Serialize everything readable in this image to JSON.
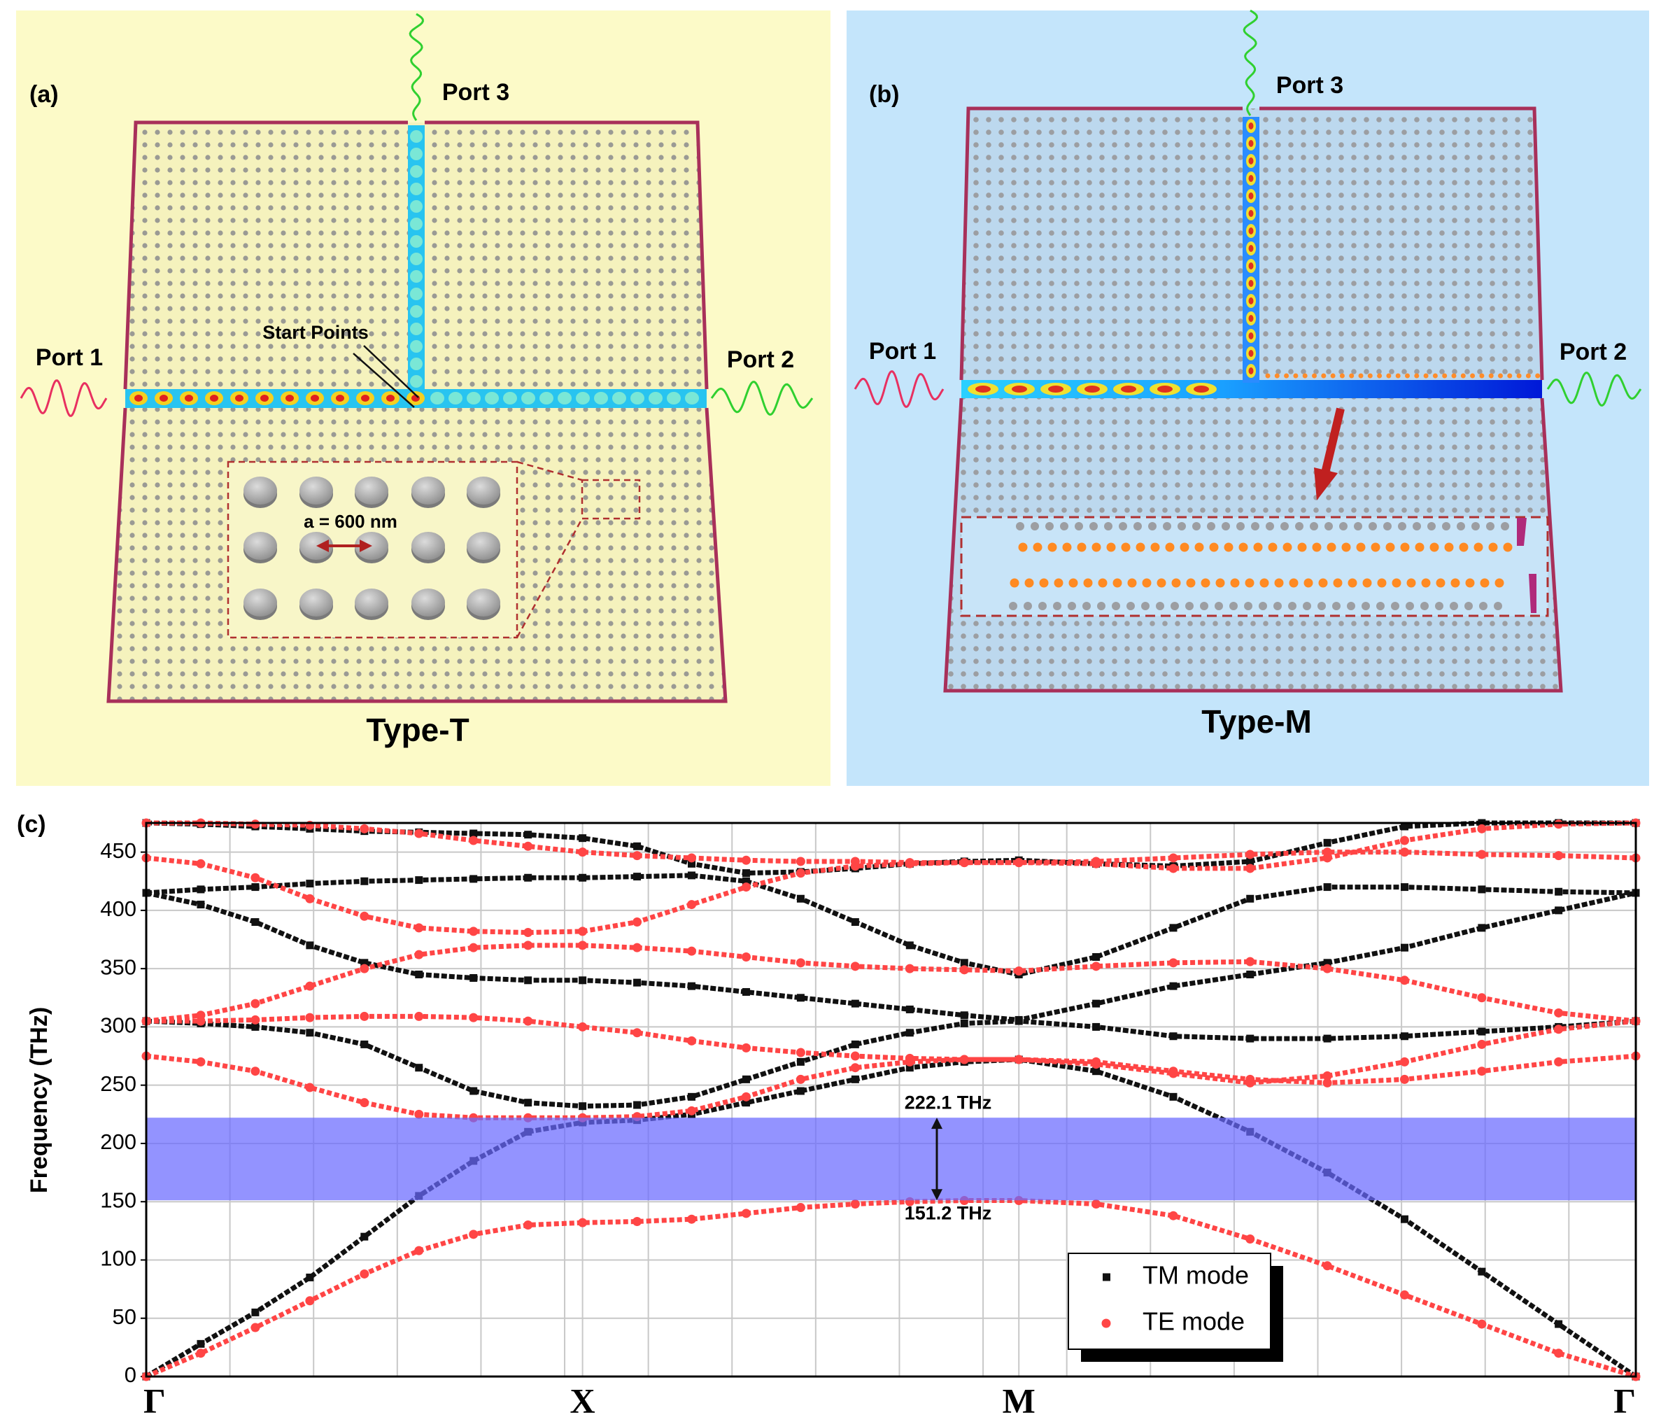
{
  "panels": {
    "a": {
      "label": "(a)",
      "port1": "Port 1",
      "port2": "Port 2",
      "port3": "Port 3",
      "start_label": "Start Points",
      "lattice_label": "a = 600 nm",
      "caption": "Type-T"
    },
    "b": {
      "label": "(b)",
      "port1": "Port 1",
      "port2": "Port 2",
      "port3": "Port 3",
      "caption": "Type-M"
    }
  },
  "chart_data": {
    "type": "scatter",
    "label": "(c)",
    "y_label": "Frequency (THz)",
    "x": [
      0,
      0.125,
      0.25,
      0.375,
      0.5,
      0.625,
      0.75,
      0.875,
      1,
      1.125,
      1.25,
      1.375,
      1.5,
      1.625,
      1.75,
      1.875,
      2,
      2.177,
      2.354,
      2.53,
      2.707,
      2.884,
      3.061,
      3.237,
      3.414
    ],
    "xlim": [
      0,
      3.414
    ],
    "xticks": [
      {
        "value": 0,
        "label": "Γ"
      },
      {
        "value": 1,
        "label": "X"
      },
      {
        "value": 2,
        "label": "M"
      },
      {
        "value": 3.414,
        "label": "Γ"
      }
    ],
    "ylim": [
      0,
      475
    ],
    "yticks": [
      0,
      50,
      100,
      150,
      200,
      250,
      300,
      350,
      400,
      450
    ],
    "grid": true,
    "series": [
      {
        "name": "TM mode",
        "color": "#111111",
        "marker": "square",
        "bands": [
          [
            0,
            28,
            55,
            85,
            120,
            155,
            185,
            210,
            218,
            220,
            225,
            235,
            245,
            255,
            265,
            270,
            272,
            262,
            240,
            210,
            175,
            135,
            90,
            45,
            0
          ],
          [
            305,
            303,
            300,
            295,
            285,
            265,
            245,
            235,
            232,
            233,
            240,
            255,
            270,
            285,
            295,
            303,
            305,
            300,
            292,
            290,
            290,
            292,
            296,
            300,
            305
          ],
          [
            415,
            405,
            390,
            370,
            355,
            345,
            342,
            340,
            340,
            338,
            335,
            330,
            325,
            320,
            315,
            310,
            306,
            320,
            335,
            345,
            355,
            368,
            385,
            400,
            415
          ],
          [
            415,
            418,
            420,
            423,
            425,
            426,
            427,
            428,
            428,
            429,
            430,
            425,
            410,
            390,
            370,
            355,
            345,
            360,
            385,
            410,
            420,
            420,
            418,
            416,
            415
          ],
          [
            475,
            474,
            472,
            470,
            468,
            467,
            466,
            465,
            462,
            455,
            440,
            432,
            433,
            436,
            440,
            442,
            443,
            440,
            438,
            442,
            458,
            472,
            475,
            475,
            475
          ]
        ]
      },
      {
        "name": "TE mode",
        "color": "#ff4545",
        "marker": "circle",
        "bands": [
          [
            0,
            20,
            42,
            65,
            88,
            108,
            122,
            130,
            132,
            133,
            135,
            140,
            145,
            148,
            150,
            151,
            151,
            148,
            138,
            118,
            95,
            70,
            45,
            20,
            0
          ],
          [
            275,
            270,
            262,
            248,
            235,
            225,
            222,
            222,
            222,
            223,
            228,
            240,
            255,
            265,
            270,
            272,
            272,
            270,
            262,
            255,
            252,
            255,
            262,
            270,
            275
          ],
          [
            305,
            305,
            306,
            308,
            309,
            309,
            308,
            305,
            300,
            295,
            288,
            282,
            278,
            275,
            273,
            272,
            272,
            268,
            260,
            252,
            258,
            270,
            285,
            298,
            305
          ],
          [
            305,
            310,
            320,
            335,
            350,
            362,
            368,
            370,
            370,
            368,
            365,
            360,
            355,
            352,
            350,
            349,
            348,
            352,
            355,
            356,
            350,
            340,
            325,
            312,
            305
          ],
          [
            445,
            440,
            428,
            410,
            395,
            385,
            382,
            381,
            382,
            390,
            405,
            420,
            432,
            438,
            440,
            441,
            441,
            440,
            436,
            436,
            445,
            460,
            470,
            474,
            475
          ],
          [
            475,
            475,
            474,
            473,
            470,
            466,
            460,
            455,
            450,
            447,
            445,
            443,
            442,
            442,
            441,
            441,
            441,
            442,
            445,
            448,
            450,
            450,
            448,
            447,
            445
          ]
        ]
      }
    ],
    "band_gap": {
      "values": [
        151.2,
        222.1
      ],
      "value_labels": [
        "151.2 THz",
        "222.1 THz"
      ],
      "color": "#6a6aff"
    }
  }
}
